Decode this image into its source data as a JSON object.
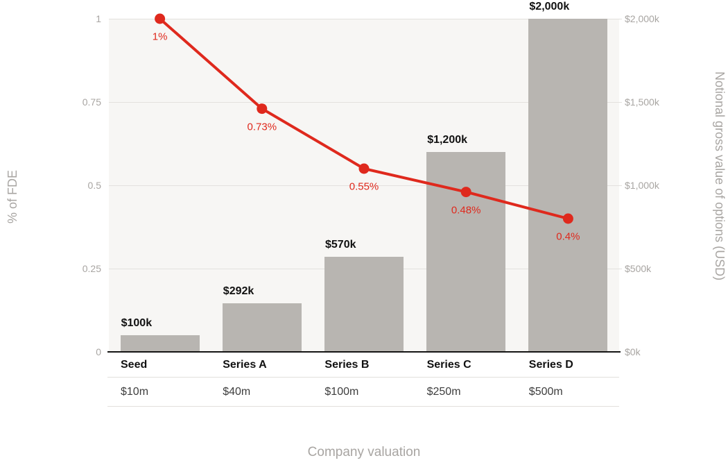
{
  "chart_data": {
    "type": "combo-bar-line",
    "categories": [
      "Seed",
      "Series A",
      "Series B",
      "Series C",
      "Series D"
    ],
    "x_secondary_labels": [
      "$10m",
      "$40m",
      "$100m",
      "$250m",
      "$500m"
    ],
    "xlabel": "Company valuation",
    "left_axis": {
      "title": "% of FDE",
      "range": [
        0,
        1
      ],
      "tick_values": [
        1,
        0.75,
        0.5,
        0.25,
        0
      ],
      "tick_labels": [
        "1",
        "0.75",
        "0.5",
        "0.25",
        "0"
      ]
    },
    "right_axis": {
      "title": "Notional gross value of options (USD)",
      "range": [
        0,
        2000
      ],
      "tick_values": [
        2000,
        1500,
        1000,
        500,
        0
      ],
      "tick_labels": [
        "$2,000k",
        "$1,500k",
        "$1,000k",
        "$500k",
        "$0k"
      ]
    },
    "series": [
      {
        "name": "Notional gross value of options (USD)",
        "kind": "bar",
        "axis": "right",
        "color": "#b8b5b1",
        "values": [
          100,
          292,
          570,
          1200,
          2000
        ],
        "data_labels": [
          "$100k",
          "$292k",
          "$570k",
          "$1,200k",
          "$2,000k"
        ]
      },
      {
        "name": "% of FDE",
        "kind": "line",
        "axis": "left",
        "color": "#df291d",
        "values": [
          1,
          0.73,
          0.55,
          0.48,
          0.4
        ],
        "data_labels": [
          "1%",
          "0.73%",
          "0.55%",
          "0.48%",
          "0.4%"
        ]
      }
    ],
    "legend": "none",
    "grid": "horizontal",
    "colors": {
      "plot_background": "#f7f6f4",
      "gridline": "#e3e1de",
      "axis_text": "#a8a5a2",
      "bar": "#b8b5b1",
      "line": "#df291d",
      "category_text": "#111111",
      "valuation_text": "#3e3e3e",
      "baseline": "#141414"
    }
  }
}
